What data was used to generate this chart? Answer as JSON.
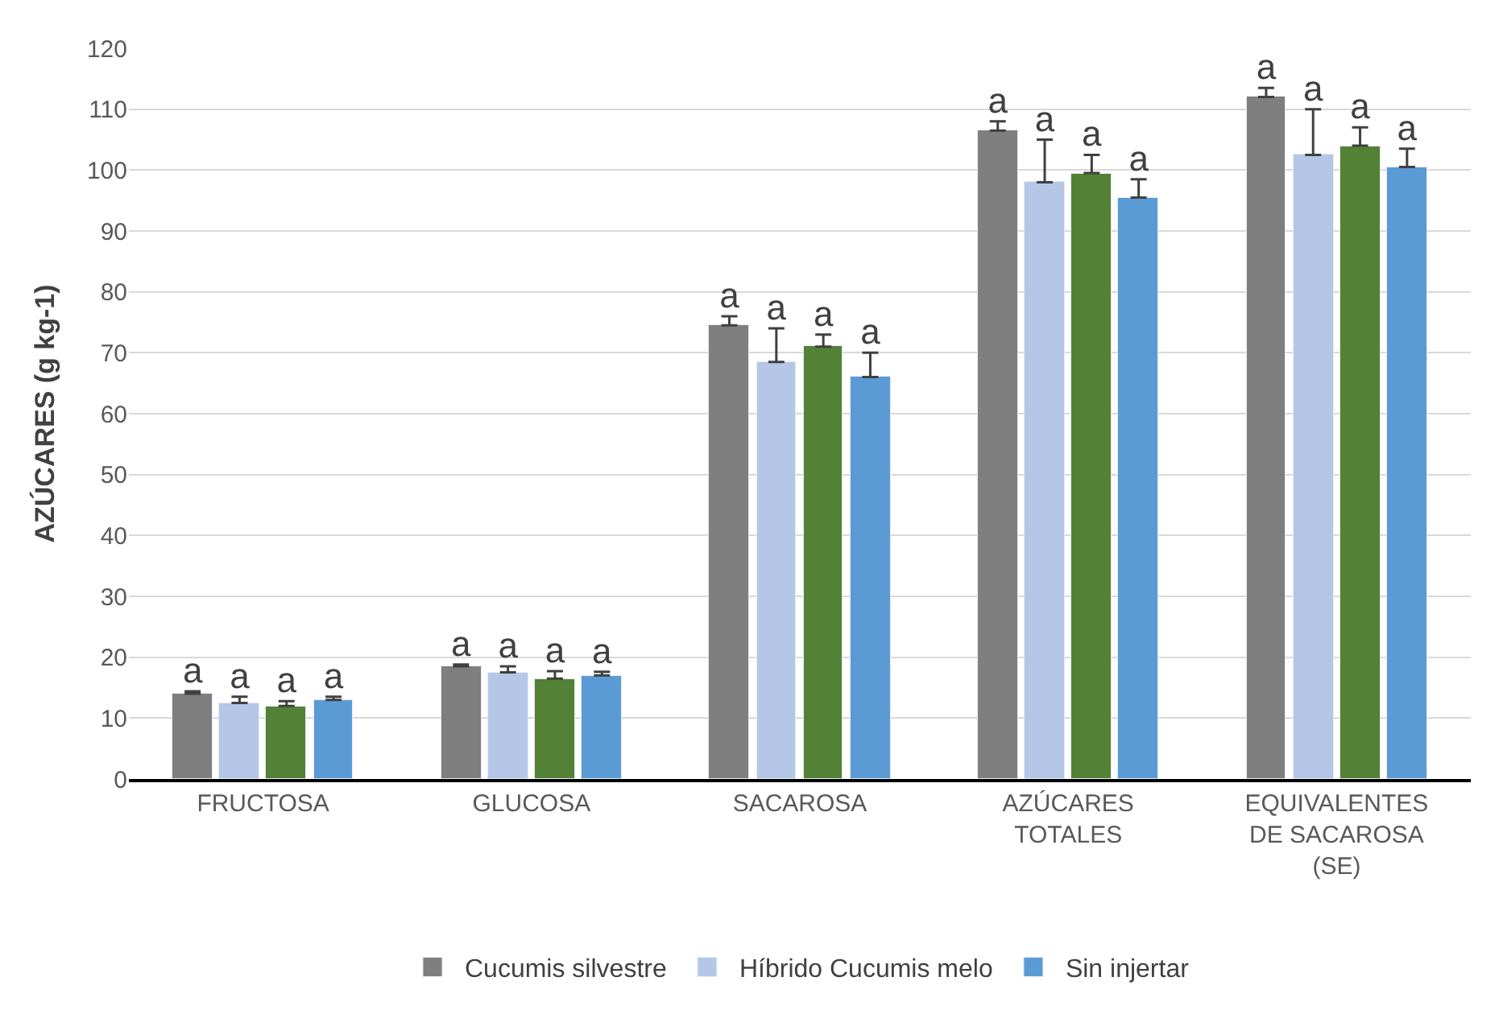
{
  "chart_data": {
    "type": "bar",
    "ylabel": "AZÚCARES (g kg-1)",
    "categories": [
      "FRUCTOSA",
      "GLUCOSA",
      "SACAROSA",
      "AZÚCARES TOTALES",
      "EQUIVALENTES DE SACAROSA (SE)"
    ],
    "series": [
      {
        "name": "Cucumis silvestre",
        "color": "#7f7f7f",
        "values": [
          14,
          18.5,
          74.5,
          106.5,
          112
        ],
        "errors": [
          [
            14,
            14.4
          ],
          [
            18.5,
            18.8
          ],
          [
            74.5,
            76
          ],
          [
            106.5,
            108
          ],
          [
            112,
            113.5
          ]
        ],
        "value_labels": [
          "a",
          "a",
          "a",
          "a",
          "a"
        ]
      },
      {
        "name": "Híbrido Cucumis melo",
        "color": "#b4c7e7",
        "values": [
          12.5,
          17.5,
          68.5,
          98,
          102.5
        ],
        "errors": [
          [
            12.5,
            13.5
          ],
          [
            17.5,
            18.5
          ],
          [
            68.5,
            74
          ],
          [
            98,
            105
          ],
          [
            102.5,
            110
          ]
        ],
        "value_labels": [
          "a",
          "a",
          "a",
          "a",
          "a"
        ]
      },
      {
        "color": "#538135",
        "values": [
          12,
          16.5,
          71,
          99.5,
          104
        ],
        "errors": [
          [
            12,
            12.8
          ],
          [
            16.5,
            17.7
          ],
          [
            71,
            73
          ],
          [
            99.5,
            102.5
          ],
          [
            104,
            107
          ]
        ],
        "value_labels": [
          "a",
          "a",
          "a",
          "a",
          "a"
        ]
      },
      {
        "name": "Sin injertar",
        "color": "#5b9bd5",
        "values": [
          13,
          17,
          66,
          95.5,
          100.5
        ],
        "errors": [
          [
            13,
            13.5
          ],
          [
            17,
            17.6
          ],
          [
            66,
            70
          ],
          [
            95.5,
            98.5
          ],
          [
            100.5,
            103.5
          ]
        ],
        "value_labels": [
          "a",
          "a",
          "a",
          "a",
          "a"
        ]
      }
    ],
    "ylim": [
      0,
      120
    ],
    "yticks": [
      0,
      10,
      20,
      30,
      40,
      50,
      60,
      70,
      80,
      90,
      100,
      110,
      120
    ],
    "grid": "y",
    "legend": "bottom"
  }
}
